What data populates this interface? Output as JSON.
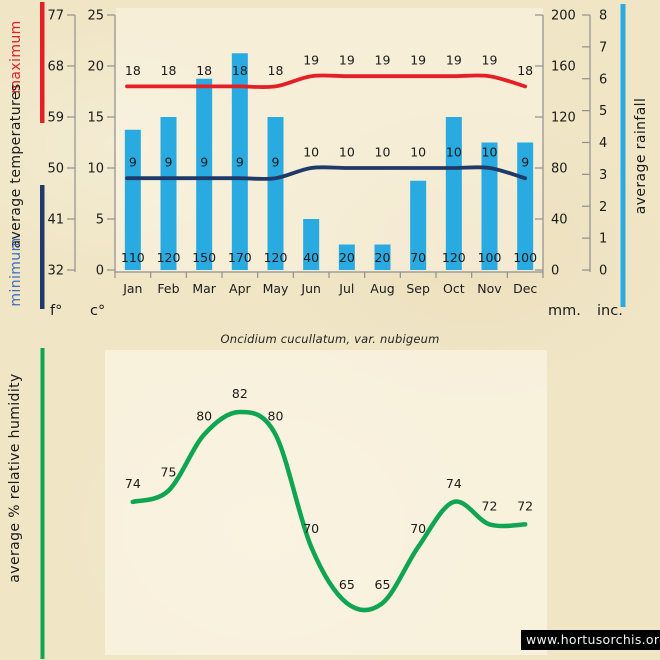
{
  "title": "Oncidium cucullatum, var. nubigeum",
  "watermark": "www.hortusorchis.org",
  "side_labels": {
    "maximum": "maximum",
    "avg_temp": "average temperatures",
    "minimum": "minimum",
    "rainfall": "average rainfall",
    "humidity": "average % relative humidity"
  },
  "colors": {
    "background": "#F0E6C6",
    "plot_tint": "rgba(255,250,239,0.55)",
    "bar": "#29ABE2",
    "max_line": "#E41F26",
    "min_line": "#1F3A68",
    "min_label_text": "#233A63",
    "humidity_line": "#0FA552",
    "minimum_side_label": "#3F6EC0",
    "text": "#1B1B1B",
    "axis": "#8F8F8F"
  },
  "chart_data": [
    {
      "type": "bar",
      "categories": [
        "Jan",
        "Feb",
        "Mar",
        "Apr",
        "May",
        "Jun",
        "Jul",
        "Aug",
        "Sep",
        "Oct",
        "Nov",
        "Dec"
      ],
      "series": [
        {
          "name": "average rainfall",
          "type": "bar",
          "axis": "mm",
          "values": [
            110,
            120,
            150,
            170,
            120,
            40,
            20,
            20,
            70,
            120,
            100,
            100
          ]
        },
        {
          "name": "maximum average temperatures",
          "type": "line",
          "axis": "c",
          "values": [
            18,
            18,
            18,
            18,
            18,
            19,
            19,
            19,
            19,
            19,
            19,
            18
          ]
        },
        {
          "name": "minimum average temperatures",
          "type": "line",
          "axis": "c",
          "values": [
            9,
            9,
            9,
            9,
            9,
            10,
            10,
            10,
            10,
            10,
            10,
            9
          ]
        }
      ],
      "axes": {
        "f": {
          "label": "f°",
          "ticks": [
            77,
            68,
            59,
            50,
            41,
            32
          ]
        },
        "c": {
          "label": "c°",
          "ticks": [
            25,
            20,
            15,
            10,
            5,
            0
          ],
          "range": [
            0,
            25
          ]
        },
        "mm": {
          "label": "mm.",
          "ticks": [
            200,
            160,
            120,
            80,
            40,
            0
          ],
          "range": [
            0,
            200
          ]
        },
        "inc": {
          "label": "inc.",
          "ticks": [
            8,
            7,
            6,
            5,
            4,
            3,
            2,
            1,
            0
          ],
          "range": [
            0,
            8
          ]
        }
      },
      "grid": false,
      "legend_position": "left-and-right-vertical-bars"
    },
    {
      "type": "line",
      "name": "average % relative humidity",
      "categories": [
        "Jan",
        "Feb",
        "Mar",
        "Apr",
        "May",
        "Jun",
        "Jul",
        "Aug",
        "Sep",
        "Oct",
        "Nov",
        "Dec"
      ],
      "values": [
        74,
        75,
        80,
        82,
        80,
        70,
        65,
        65,
        70,
        74,
        72,
        72
      ],
      "ylim": [
        60,
        85
      ],
      "grid": false
    }
  ]
}
